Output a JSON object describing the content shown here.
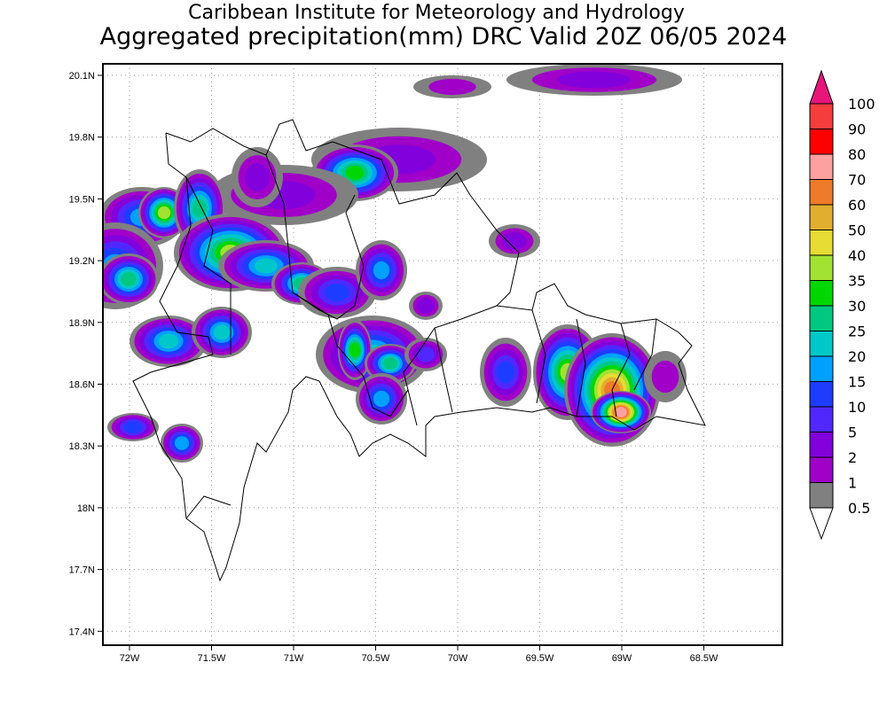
{
  "title": {
    "line1": "Caribbean Institute for Meteorology and Hydrology",
    "line2": "Aggregated precipitation(mm) DRC Valid 20Z 06/05 2024"
  },
  "map": {
    "lat_ticks": [
      "20.1N",
      "19.8N",
      "19.5N",
      "19.2N",
      "18.9N",
      "18.6N",
      "18.3N",
      "18N",
      "17.7N",
      "17.4N"
    ],
    "lon_ticks": [
      "72W",
      "71.5W",
      "71W",
      "70.5W",
      "70W",
      "69.5W",
      "69W",
      "68.5W"
    ]
  },
  "colorbar": {
    "labels": [
      "100",
      "90",
      "80",
      "70",
      "60",
      "50",
      "40",
      "35",
      "30",
      "25",
      "20",
      "15",
      "10",
      "5",
      "2",
      "1",
      "0.5"
    ],
    "colors": [
      "#e8157a",
      "#f53d3d",
      "#ff0000",
      "#ffa0a0",
      "#ef7b2a",
      "#e2ae2e",
      "#e6dc33",
      "#a2e233",
      "#00d700",
      "#00c882",
      "#00c8c8",
      "#00a0ff",
      "#1e3cff",
      "#5028ff",
      "#8200dc",
      "#a000c8",
      "#808080"
    ]
  }
}
